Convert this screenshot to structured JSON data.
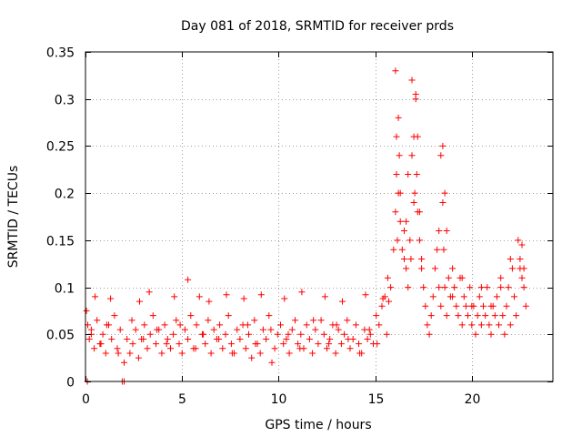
{
  "chart_data": {
    "type": "scatter",
    "title": "Day 081 of 2018, SRMTID for receiver prds",
    "xlabel": "GPS time / hours",
    "ylabel": "SRMTID / TECUs",
    "xlim": [
      0,
      24.2
    ],
    "ylim": [
      0,
      0.35
    ],
    "xticks": [
      0,
      5,
      10,
      15,
      20
    ],
    "xtick_labels": [
      "0",
      "5",
      "10",
      "15",
      "20"
    ],
    "yticks": [
      0,
      0.05,
      0.1,
      0.15,
      0.2,
      0.25,
      0.3,
      0.35
    ],
    "ytick_labels": [
      "0",
      "0.05",
      "0.1",
      "0.15",
      "0.2",
      "0.25",
      "0.3",
      "0.35"
    ],
    "grid": true,
    "marker": "plus",
    "color": "#ff0000",
    "series": [
      {
        "name": "prds",
        "x": [
          0.05,
          0.12,
          0.2,
          0.3,
          0.45,
          0.6,
          0.75,
          0.9,
          1.05,
          1.2,
          1.35,
          1.5,
          1.65,
          1.8,
          2.0,
          2.15,
          2.3,
          2.45,
          2.6,
          2.75,
          2.9,
          3.05,
          3.2,
          3.35,
          3.5,
          3.65,
          3.8,
          3.95,
          4.1,
          4.25,
          4.4,
          4.55,
          4.7,
          4.85,
          5.0,
          5.15,
          5.3,
          5.45,
          5.6,
          5.75,
          5.9,
          6.05,
          6.2,
          6.35,
          6.5,
          6.65,
          6.8,
          6.95,
          7.1,
          7.25,
          7.4,
          7.55,
          7.7,
          7.85,
          8.0,
          8.15,
          8.3,
          8.45,
          8.6,
          8.75,
          8.9,
          9.05,
          9.2,
          9.35,
          9.5,
          9.65,
          9.8,
          9.95,
          10.1,
          10.25,
          10.4,
          10.55,
          10.7,
          10.85,
          11.0,
          11.15,
          11.3,
          11.45,
          11.6,
          11.75,
          11.9,
          12.05,
          12.2,
          12.35,
          12.5,
          12.65,
          12.8,
          12.95,
          13.1,
          13.25,
          13.4,
          13.55,
          13.7,
          13.85,
          14.0,
          14.15,
          14.3,
          14.45,
          14.6,
          14.75,
          14.9,
          15.05,
          15.2,
          15.35,
          15.5,
          15.65,
          15.8,
          15.95,
          16.05,
          16.1,
          16.2,
          16.3,
          16.4,
          16.5,
          16.6,
          16.7,
          16.8,
          16.9,
          17.0,
          17.1,
          17.2,
          17.3,
          17.4,
          17.5,
          17.6,
          17.7,
          17.8,
          17.9,
          18.0,
          18.1,
          18.2,
          18.3,
          18.4,
          18.5,
          18.6,
          18.7,
          18.8,
          18.9,
          19.0,
          19.1,
          19.2,
          19.3,
          19.4,
          19.5,
          19.6,
          19.7,
          19.8,
          19.9,
          20.0,
          20.1,
          20.2,
          20.3,
          20.4,
          20.5,
          20.6,
          20.7,
          20.8,
          20.9,
          21.0,
          21.1,
          21.2,
          21.3,
          21.4,
          21.5,
          21.6,
          21.7,
          21.8,
          21.9,
          22.0,
          22.1,
          22.2,
          22.3,
          22.4,
          22.5,
          22.6,
          22.7,
          22.8,
          16.05,
          16.1,
          16.15,
          16.2,
          16.25,
          16.3,
          16.5,
          16.6,
          16.7,
          16.85,
          16.9,
          17.0,
          17.05,
          17.1,
          17.15,
          17.2,
          17.3,
          17.4,
          18.3,
          18.4,
          18.5,
          18.55,
          18.6,
          18.7,
          19.0,
          19.5,
          20.0,
          20.5,
          21.0,
          21.5,
          22.0,
          22.5,
          22.6,
          22.7,
          0.1,
          1.9,
          2.0,
          0.5,
          1.3,
          2.8,
          3.3,
          4.6,
          5.3,
          6.4,
          7.3,
          8.2,
          9.1,
          10.3,
          11.2,
          12.4,
          13.3,
          14.5,
          15.4,
          15.7,
          0.3,
          0.8,
          1.1,
          1.7,
          2.4,
          3.0,
          3.7,
          4.2,
          4.9,
          5.7,
          6.1,
          6.9,
          7.6,
          8.4,
          8.8,
          9.6,
          10.5,
          11.1,
          11.8,
          12.6,
          13.0,
          13.6,
          14.2,
          14.7,
          15.1,
          15.6
        ],
        "y": [
          0.075,
          0.06,
          0.045,
          0.055,
          0.035,
          0.065,
          0.04,
          0.05,
          0.03,
          0.06,
          0.045,
          0.07,
          0.035,
          0.055,
          0.02,
          0.045,
          0.03,
          0.04,
          0.055,
          0.025,
          0.045,
          0.06,
          0.035,
          0.05,
          0.07,
          0.04,
          0.055,
          0.03,
          0.06,
          0.045,
          0.035,
          0.05,
          0.065,
          0.04,
          0.03,
          0.055,
          0.045,
          0.07,
          0.035,
          0.06,
          0.09,
          0.05,
          0.04,
          0.065,
          0.03,
          0.055,
          0.045,
          0.06,
          0.035,
          0.05,
          0.07,
          0.04,
          0.03,
          0.055,
          0.045,
          0.06,
          0.035,
          0.05,
          0.025,
          0.065,
          0.04,
          0.03,
          0.055,
          0.045,
          0.07,
          0.02,
          0.035,
          0.05,
          0.06,
          0.04,
          0.045,
          0.03,
          0.055,
          0.065,
          0.04,
          0.05,
          0.035,
          0.06,
          0.045,
          0.03,
          0.055,
          0.04,
          0.065,
          0.05,
          0.035,
          0.045,
          0.06,
          0.03,
          0.055,
          0.04,
          0.05,
          0.065,
          0.035,
          0.045,
          0.06,
          0.04,
          0.03,
          0.055,
          0.045,
          0.05,
          0.04,
          0.07,
          0.06,
          0.08,
          0.09,
          0.11,
          0.1,
          0.14,
          0.33,
          0.26,
          0.2,
          0.17,
          0.14,
          0.16,
          0.12,
          0.1,
          0.15,
          0.24,
          0.19,
          0.3,
          0.26,
          0.18,
          0.13,
          0.1,
          0.08,
          0.06,
          0.05,
          0.07,
          0.09,
          0.12,
          0.14,
          0.1,
          0.08,
          0.25,
          0.2,
          0.16,
          0.11,
          0.09,
          0.12,
          0.1,
          0.08,
          0.07,
          0.11,
          0.06,
          0.09,
          0.08,
          0.07,
          0.1,
          0.06,
          0.08,
          0.05,
          0.07,
          0.09,
          0.06,
          0.08,
          0.07,
          0.1,
          0.06,
          0.05,
          0.08,
          0.07,
          0.09,
          0.06,
          0.11,
          0.07,
          0.05,
          0.08,
          0.1,
          0.06,
          0.12,
          0.09,
          0.07,
          0.15,
          0.13,
          0.11,
          0.1,
          0.08,
          0.18,
          0.22,
          0.15,
          0.28,
          0.24,
          0.2,
          0.13,
          0.17,
          0.22,
          0.13,
          0.32,
          0.26,
          0.2,
          0.305,
          0.22,
          0.18,
          0.15,
          0.12,
          0.16,
          0.24,
          0.19,
          0.14,
          0.1,
          0.07,
          0.09,
          0.11,
          0.08,
          0.1,
          0.08,
          0.1,
          0.13,
          0.12,
          0.145,
          0.12,
          0.0,
          0.0,
          0.0,
          0.09,
          0.088,
          0.085,
          0.095,
          0.09,
          0.108,
          0.085,
          0.092,
          0.088,
          0.092,
          0.088,
          0.095,
          0.09,
          0.085,
          0.092,
          0.088,
          0.085,
          0.05,
          0.04,
          0.06,
          0.03,
          0.065,
          0.045,
          0.055,
          0.04,
          0.06,
          0.035,
          0.05,
          0.045,
          0.03,
          0.06,
          0.04,
          0.055,
          0.05,
          0.035,
          0.065,
          0.04,
          0.06,
          0.045,
          0.03,
          0.055,
          0.04,
          0.05
        ]
      }
    ]
  }
}
